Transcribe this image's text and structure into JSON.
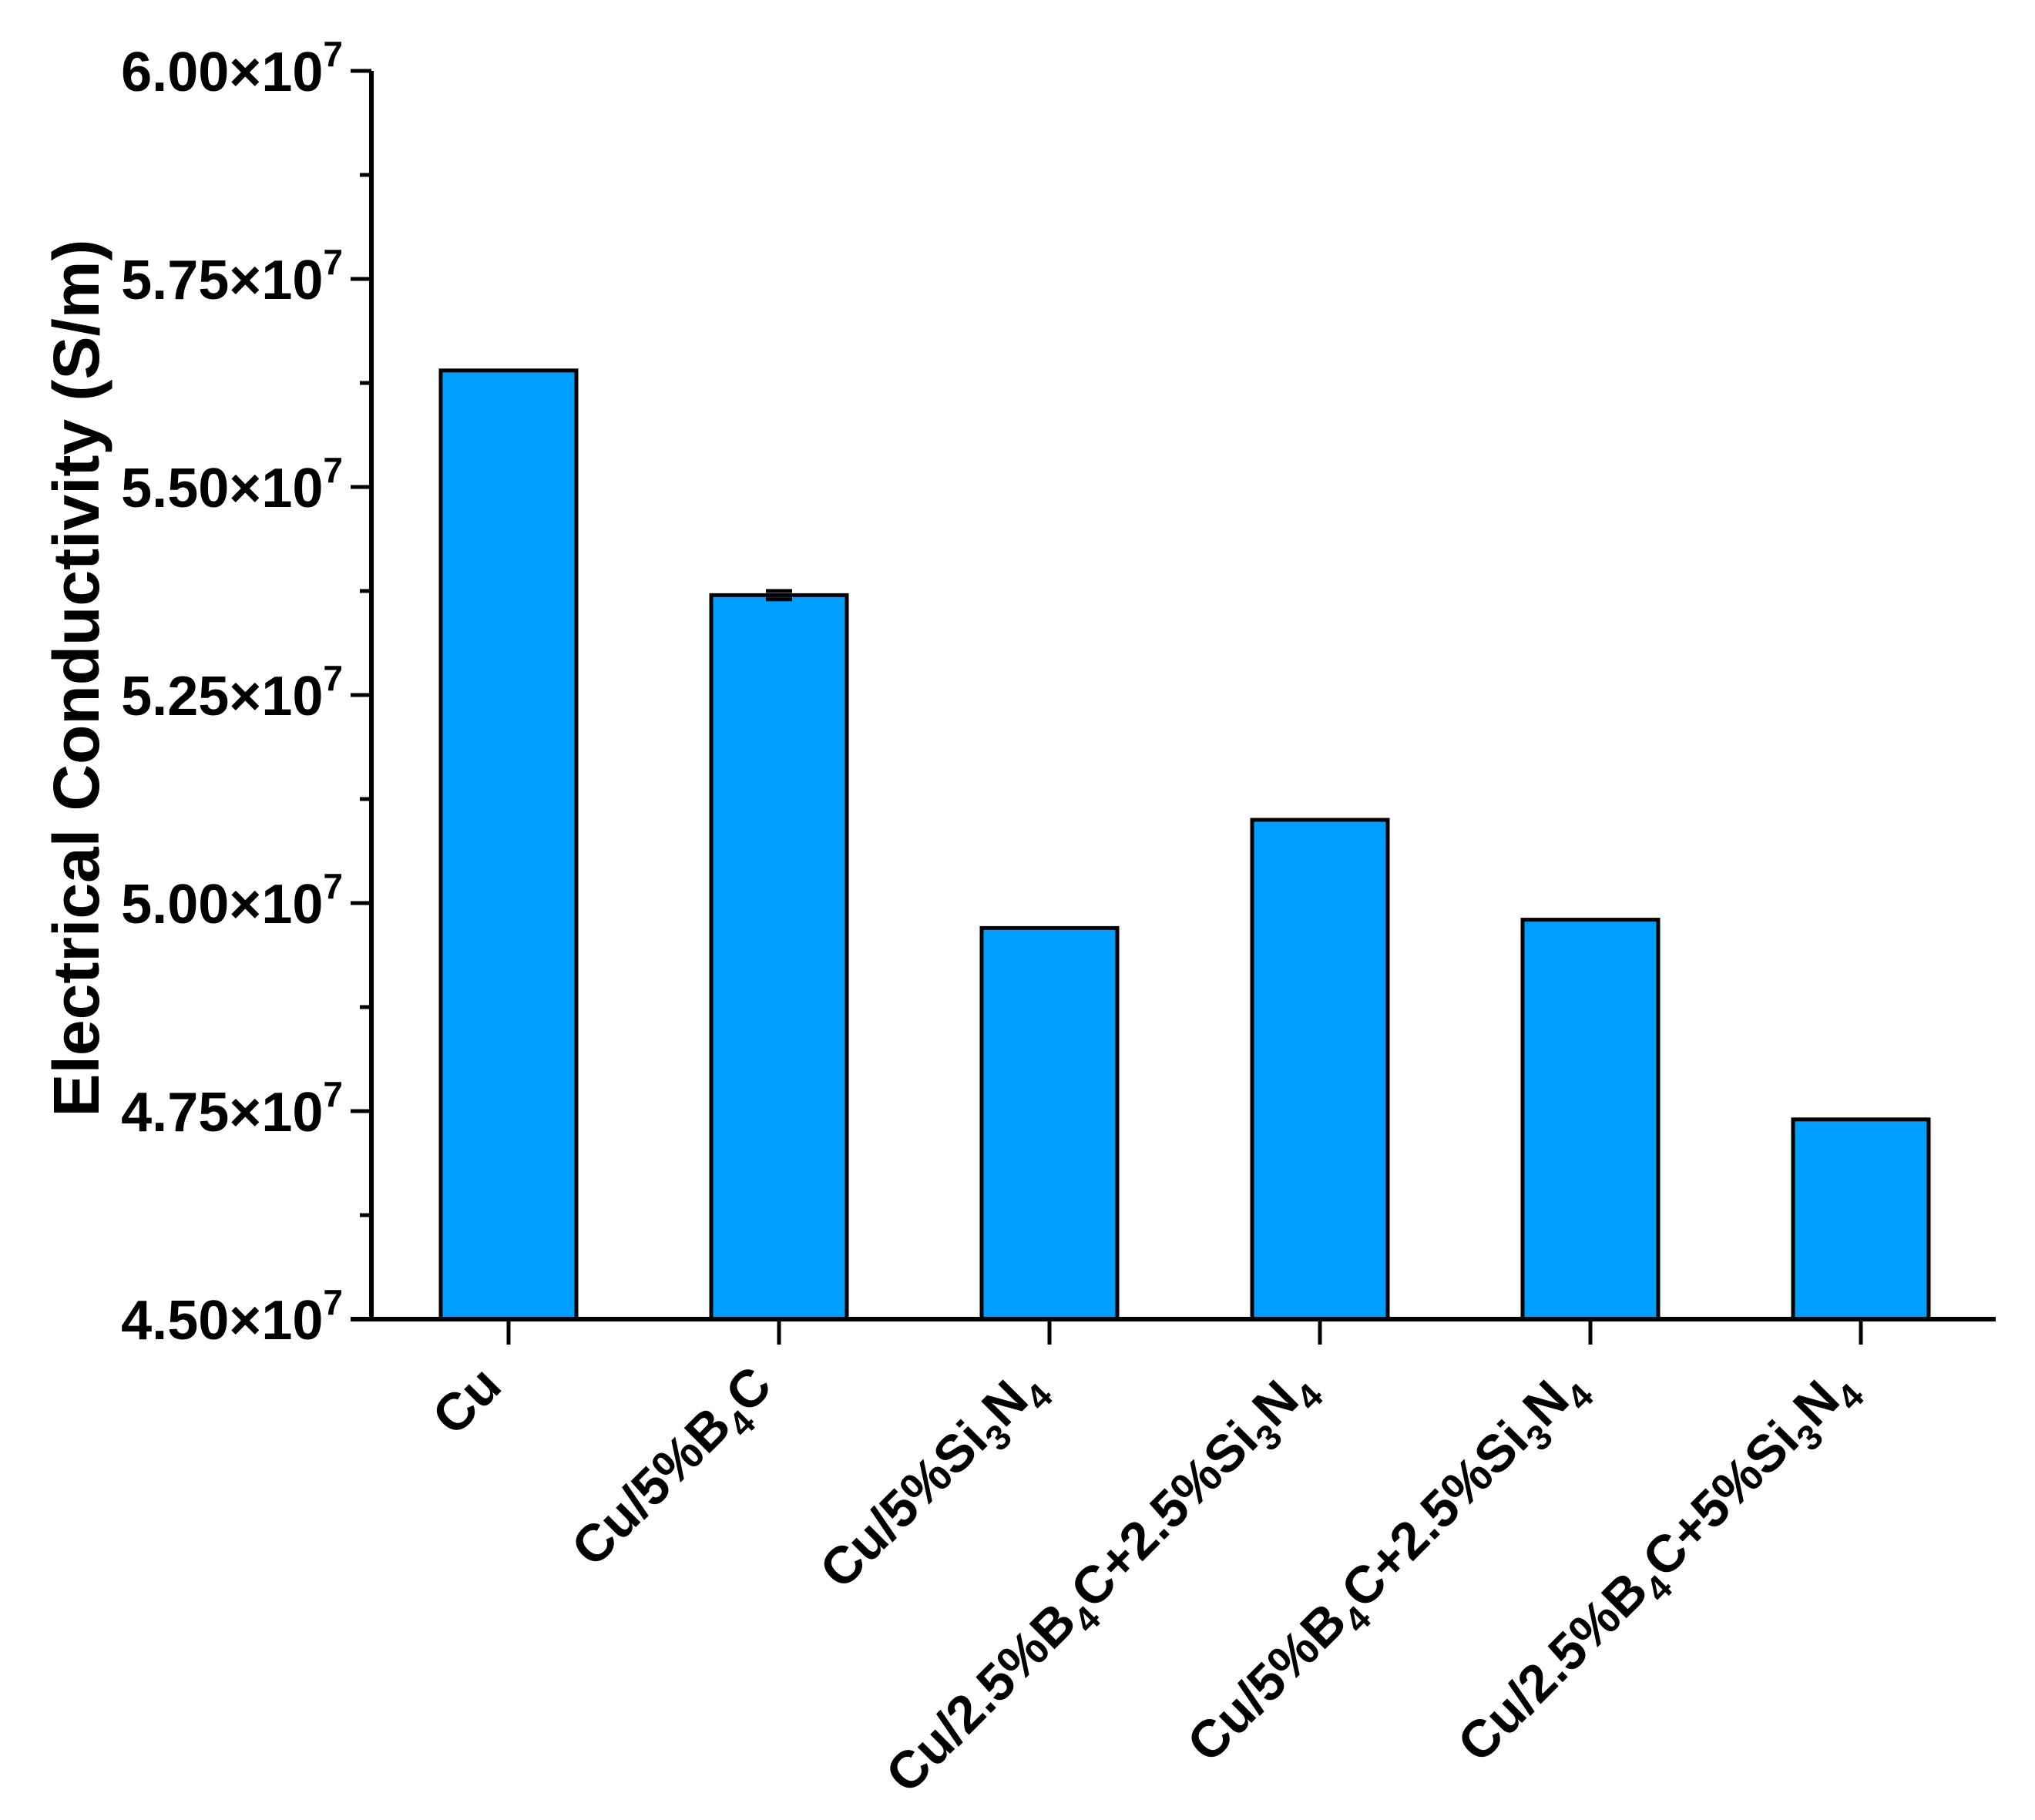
{
  "figure": {
    "background_color": "#ffffff",
    "bar_fill_color": "#009FFF",
    "bar_edge_color": "#000000",
    "axis_color": "#000000",
    "text_color": "#000000"
  },
  "chart_data": {
    "type": "bar",
    "title": "",
    "xlabel": "",
    "ylabel": "Electrical Conductivity (S/m)",
    "value_scale": "x10^7 S/m",
    "categories": [
      "Cu",
      "Cu/5%B4C",
      "Cu/5%Si3N4",
      "Cu/2.5%B4C+2.5%Si3N4",
      "Cu/5%B4C+2.5%Si3N4",
      "Cu/2.5%B4C+5%Si3N4"
    ],
    "categories_rich": [
      "Cu",
      "Cu/5%B_4_C",
      "Cu/5%Si_3_N_4_",
      "Cu/2.5%B_4_C+2.5%Si_3_N_4_",
      "Cu/5%B_4_C+2.5%Si_3_N_4_",
      "Cu/2.5%B_4_C+5%Si_3_N_4_"
    ],
    "values": [
      5.64,
      5.37,
      4.97,
      5.1,
      4.98,
      4.74
    ],
    "values_si": [
      56400000,
      53700000,
      49700000,
      51000000,
      49800000,
      47400000
    ],
    "errors": [
      0,
      0.005,
      0,
      0,
      0,
      0
    ],
    "ylim": [
      4.5,
      6.0
    ],
    "ytick_step": 0.25,
    "yminor_step": 0.125,
    "ytick_labels": [
      "4.50×10^7",
      "4.75×10^7",
      "5.00×10^7",
      "5.25×10^7",
      "5.50×10^7",
      "5.75×10^7",
      "6.00×10^7"
    ],
    "grid": false,
    "legend": null
  }
}
